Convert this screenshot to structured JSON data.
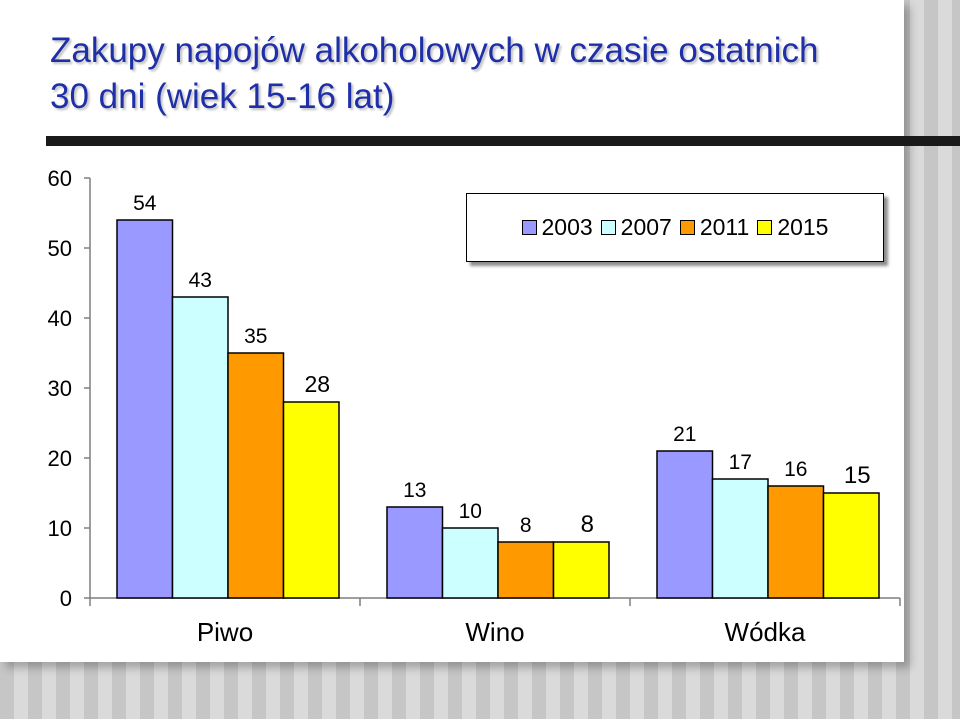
{
  "title_line1": "Zakupy napojów alkoholowych w czasie ostatnich",
  "title_line2": "30 dni (wiek 15-16 lat)",
  "chart_data": {
    "type": "bar",
    "title": "Zakupy napojów alkoholowych w czasie ostatnich 30 dni (wiek 15-16 lat)",
    "categories": [
      "Piwo",
      "Wino",
      "Wódka"
    ],
    "series": [
      {
        "name": "2003",
        "color": "#9999ff",
        "values": [
          54,
          13,
          21
        ]
      },
      {
        "name": "2007",
        "color": "#ccffff",
        "values": [
          43,
          10,
          17
        ]
      },
      {
        "name": "2011",
        "color": "#ff9900",
        "values": [
          35,
          8,
          16
        ]
      },
      {
        "name": "2015",
        "color": "#ffff00",
        "values": [
          28,
          8,
          15
        ]
      }
    ],
    "data_labels": [
      [
        "54",
        "13",
        "21"
      ],
      [
        "43",
        "10",
        "17"
      ],
      [
        "35",
        "8",
        "16"
      ],
      [
        "28",
        "8",
        "15"
      ]
    ],
    "yticks": [
      "0",
      "10",
      "20",
      "30",
      "40",
      "50",
      "60"
    ],
    "ylim": [
      0,
      60
    ],
    "xlabel": "",
    "ylabel": "",
    "grid": false,
    "legend_placement": "top-right"
  }
}
